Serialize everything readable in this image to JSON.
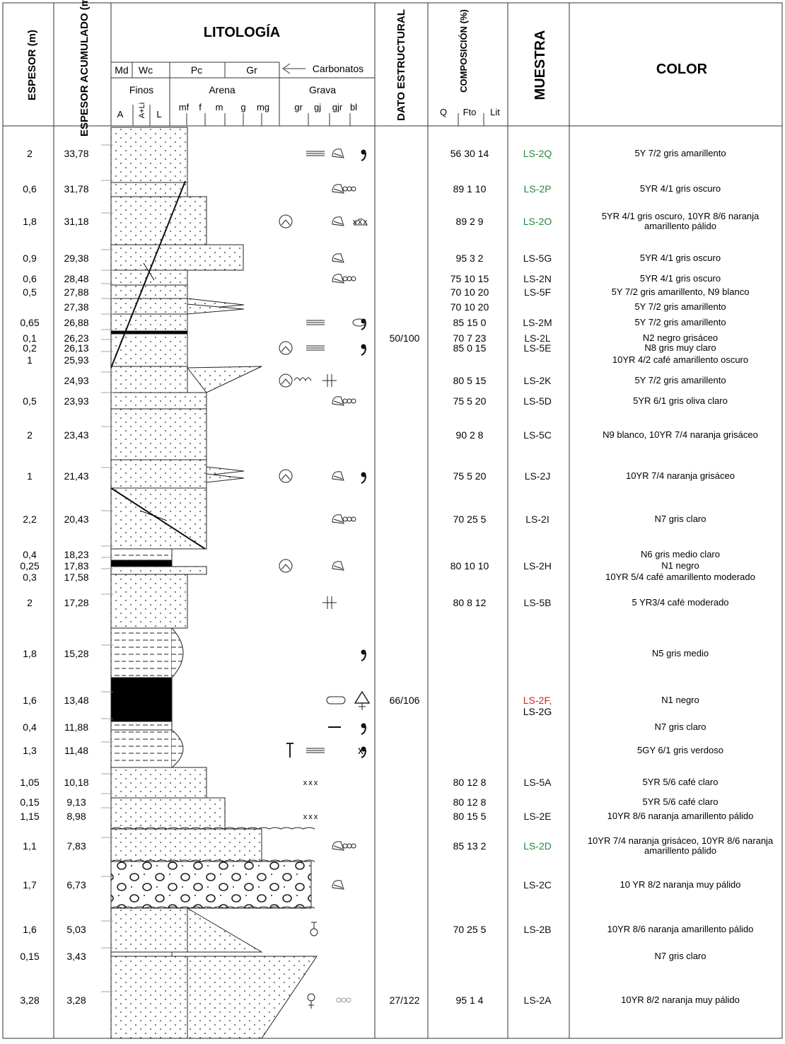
{
  "headers": {
    "espesor": "ESPESOR (m)",
    "espesor_acumulado": "ESPESOR ACUMULADO (m)",
    "litologia": "LITOLOGÍA",
    "dato_estructural": "DATO ESTRUCTURAL",
    "composicion": "COMPOSICIÓN (%)",
    "muestra": "MUESTRA",
    "color": "COLOR",
    "carbonatos": "Carbonatos",
    "carb_classes": [
      "Md",
      "Wc",
      "Pc",
      "Gr"
    ],
    "grain_groups": [
      "Finos",
      "Arena",
      "Grava"
    ],
    "finos_sub": [
      "A",
      "A+Li",
      "L"
    ],
    "arena_sub": [
      "mf",
      "f",
      "m",
      "g",
      "mg"
    ],
    "grava_sub": [
      "gr",
      "gj",
      "gjr",
      "bl"
    ],
    "comp_sub": [
      "Q",
      "Fto",
      "Lit"
    ]
  },
  "rows": [
    {
      "esp": "2",
      "acum": "33,78",
      "dato": "",
      "comp": "56  30  14",
      "muestra": "LS-2Q",
      "mcolor": "#1f8a3a",
      "color": [
        "5Y 7/2 gris amarillento"
      ],
      "symbols": [
        "lamination-icon",
        "shell-icon",
        "comma-icon"
      ]
    },
    {
      "esp": "0,6",
      "acum": "31,78",
      "dato": "",
      "comp": "89   1   10",
      "muestra": "LS-2P",
      "mcolor": "#1f8a3a",
      "color": [
        "5YR 4/1 gris oscuro"
      ],
      "symbols": [
        "shell-icon",
        "bioturbation-icon"
      ]
    },
    {
      "esp": "1,8",
      "acum": "31,18",
      "dato": "",
      "comp": "89   2   9",
      "muestra": "LS-2O",
      "mcolor": "#1f8a3a",
      "color": [
        "5YR 4/1 gris oscuro, 10YR 8/6 naranja",
        "amarillento pálido"
      ],
      "symbols": [
        "ammonite-icon",
        "shell-icon",
        "brachiopod-icon",
        "crosses-xxx"
      ]
    },
    {
      "esp": "0,9",
      "acum": "29,38",
      "dato": "",
      "comp": "95   3   2",
      "muestra": "LS-5G",
      "mcolor": "#111111",
      "color": [
        "5YR 4/1 gris oscuro"
      ],
      "symbols": [
        "shell-icon"
      ]
    },
    {
      "esp": "0,6",
      "acum": "28,48",
      "dato": "",
      "comp": "75   10   15",
      "muestra": "LS-2N",
      "mcolor": "#111111",
      "color": [
        "5YR 4/1 gris oscuro"
      ],
      "symbols": [
        "shell-icon",
        "bioturbation-icon"
      ]
    },
    {
      "esp": "0,5",
      "acum": "27,88",
      "dato": "",
      "comp": "70   10   20",
      "muestra": "LS-5F",
      "mcolor": "#111111",
      "color": [
        "5Y 7/2 gris amarillento, N9 blanco"
      ],
      "symbols": []
    },
    {
      "esp": "",
      "acum": "27,38",
      "dato": "",
      "comp": "70   10   20",
      "muestra": "",
      "mcolor": "#111111",
      "color": [
        "5Y 7/2 gris amarillento"
      ],
      "symbols": []
    },
    {
      "esp": "0,65",
      "acum": "26,88",
      "dato": "",
      "comp": "85   15   0",
      "muestra": "LS-2M",
      "mcolor": "#111111",
      "color": [
        "5Y 7/2 gris amarillento"
      ],
      "symbols": [
        "lamination-icon",
        "comma-icon",
        "nodule-icon"
      ]
    },
    {
      "esp": "0,1",
      "acum": "26,23",
      "dato": "50/100",
      "comp": "70 7 23",
      "muestra": "LS-2L",
      "mcolor": "#111111",
      "color": [
        "N2 negro grisáceo"
      ],
      "symbols": []
    },
    {
      "esp": "0,2",
      "acum": "26,13",
      "dato": "",
      "comp": "85   0   15",
      "muestra": "LS-5E",
      "mcolor": "#111111",
      "color": [
        "N8 gris muy claro"
      ],
      "symbols": [
        "lamination-icon",
        "ammonite-icon",
        "comma-icon"
      ]
    },
    {
      "esp": "1",
      "acum": "25,93",
      "dato": "",
      "comp": "",
      "muestra": "",
      "mcolor": "#111111",
      "color": [
        "10YR 4/2 café amarillento oscuro"
      ],
      "symbols": []
    },
    {
      "esp": "",
      "acum": "24,93",
      "dato": "",
      "comp": "80   5   15",
      "muestra": "LS-2K",
      "mcolor": "#111111",
      "color": [
        "5Y 7/2 gris amarillento"
      ],
      "symbols": [
        "ripple-icon",
        "cross-icon",
        "ammonite-icon"
      ]
    },
    {
      "esp": "0,5",
      "acum": "23,93",
      "dato": "",
      "comp": "75   5   20",
      "muestra": "LS-5D",
      "mcolor": "#111111",
      "color": [
        "5YR 6/1 gris oliva claro"
      ],
      "symbols": [
        "shell-icon",
        "bioturbation-icon"
      ]
    },
    {
      "esp": "2",
      "acum": "23,43",
      "dato": "",
      "comp": "90   2   8",
      "muestra": "LS-5C",
      "mcolor": "#111111",
      "color": [
        "N9 blanco, 10YR 7/4 naranja grisáceo"
      ],
      "symbols": []
    },
    {
      "esp": "1",
      "acum": "21,43",
      "dato": "",
      "comp": "75   5   20",
      "muestra": "LS-2J",
      "mcolor": "#111111",
      "color": [
        "10YR 7/4 naranja grisáceo"
      ],
      "symbols": [
        "shell-icon",
        "ammonite-icon",
        "comma-icon"
      ]
    },
    {
      "esp": "2,2",
      "acum": "20,43",
      "dato": "",
      "comp": "70   25   5",
      "muestra": "LS-2I",
      "mcolor": "#111111",
      "color": [
        "N7 gris claro"
      ],
      "symbols": [
        "shell-icon",
        "bioturbation-icon"
      ]
    },
    {
      "esp": "0,4",
      "acum": "18,23",
      "dato": "",
      "comp": "",
      "muestra": "",
      "mcolor": "#111111",
      "color": [
        "N6 gris medio claro"
      ],
      "symbols": []
    },
    {
      "esp": "0,25",
      "acum": "17,83",
      "dato": "",
      "comp": "80   10 10",
      "muestra": "LS-2H",
      "mcolor": "#111111",
      "color": [
        "N1 negro"
      ],
      "symbols": [
        "shell-icon",
        "ammonite-icon"
      ]
    },
    {
      "esp": "0,3",
      "acum": "17,58",
      "dato": "",
      "comp": "",
      "muestra": "",
      "mcolor": "#111111",
      "color": [
        "10YR 5/4 café amarillento moderado"
      ],
      "symbols": []
    },
    {
      "esp": "2",
      "acum": "17,28",
      "dato": "",
      "comp": "80   8   12",
      "muestra": "LS-5B",
      "mcolor": "#111111",
      "color": [
        "5 YR3/4 café moderado"
      ],
      "symbols": [
        "cross-icon"
      ]
    },
    {
      "esp": "1,8",
      "acum": "15,28",
      "dato": "",
      "comp": "",
      "muestra": "",
      "mcolor": "#111111",
      "color": [
        "N5 gris medio"
      ],
      "symbols": [
        "comma-icon"
      ]
    },
    {
      "esp": "1,6",
      "acum": "13,48",
      "dato": "66/106",
      "comp": "",
      "muestra": "LS-2F,",
      "muestra2": "LS-2G",
      "mcolor": "#c62828",
      "color": [
        "N1 negro"
      ],
      "symbols": [
        "wood-icon",
        "plant-icon"
      ]
    },
    {
      "esp": "0,4",
      "acum": "11,88",
      "dato": "",
      "comp": "",
      "muestra": "",
      "mcolor": "#111111",
      "color": [
        "N7 gris claro"
      ],
      "symbols": [
        "comma-icon",
        "dash-icon"
      ]
    },
    {
      "esp": "1,3",
      "acum": "11,48",
      "dato": "",
      "comp": "",
      "muestra": "",
      "mcolor": "#111111",
      "color": [
        "5GY 6/1 gris verdoso"
      ],
      "symbols": [
        "burrow-icon",
        "lamination-icon",
        "comma-icon",
        "x-icon"
      ]
    },
    {
      "esp": "1,05",
      "acum": "10,18",
      "dato": "",
      "comp": "80   12   8",
      "muestra": "LS-5A",
      "mcolor": "#111111",
      "color": [
        "5YR 5/6 café claro"
      ],
      "symbols": [
        "crosses-xxx"
      ]
    },
    {
      "esp": "0,15",
      "acum": "9,13",
      "dato": "",
      "comp": "80   12   8",
      "muestra": "",
      "mcolor": "#111111",
      "color": [
        "5YR 5/6 café claro"
      ],
      "symbols": []
    },
    {
      "esp": "1,15",
      "acum": "8,98",
      "dato": "",
      "comp": "80   15   5",
      "muestra": "LS-2E",
      "mcolor": "#111111",
      "color": [
        "10YR 8/6 naranja amarillento pálido"
      ],
      "symbols": [
        "crosses-xxx"
      ]
    },
    {
      "esp": "1,1",
      "acum": "7,83",
      "dato": "",
      "comp": "85   13   2",
      "muestra": "LS-2D",
      "mcolor": "#1f8a3a",
      "color": [
        "10YR 7/4 naranja grisáceo, 10YR 8/6 naranja",
        "amarillento pálido"
      ],
      "symbols": [
        "shell-icon",
        "bioturbation-icon"
      ]
    },
    {
      "esp": "1,7",
      "acum": "6,73",
      "dato": "",
      "comp": "",
      "muestra": "LS-2C",
      "mcolor": "#111111",
      "color": [
        "10 YR 8/2 naranja muy pálido"
      ],
      "symbols": [
        "shell-icon"
      ]
    },
    {
      "esp": "1,6",
      "acum": "5,03",
      "dato": "",
      "comp": "70   25   5",
      "muestra": "LS-2B",
      "mcolor": "#111111",
      "color": [
        "10YR 8/6 naranja amarillento pálido"
      ],
      "symbols": [
        "root-icon"
      ]
    },
    {
      "esp": "0,15",
      "acum": "3,43",
      "dato": "",
      "comp": "",
      "muestra": "",
      "mcolor": "#111111",
      "color": [
        "N7 gris claro"
      ],
      "symbols": []
    },
    {
      "esp": "3,28",
      "acum": "3,28",
      "dato": "27/122",
      "comp": "95   1   4",
      "muestra": "LS-2A",
      "mcolor": "#111111",
      "color": [
        "10YR 8/2 naranja muy pálido"
      ],
      "symbols": [
        "female-root-icon",
        "oolite-icon"
      ]
    }
  ]
}
